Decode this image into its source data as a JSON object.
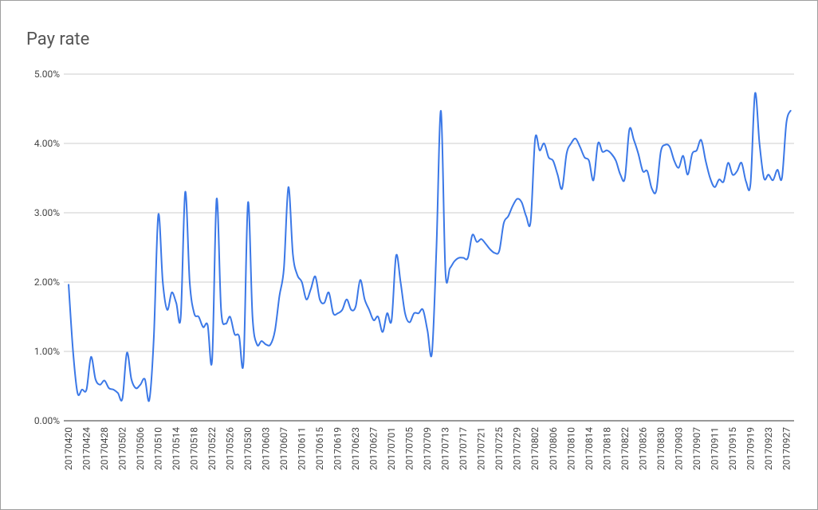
{
  "chart_data": {
    "type": "line",
    "title": "Pay rate",
    "categories": [
      "20170420",
      null,
      null,
      null,
      "20170424",
      null,
      null,
      null,
      "20170428",
      null,
      null,
      null,
      "20170502",
      null,
      null,
      null,
      "20170506",
      null,
      null,
      null,
      "20170510",
      null,
      null,
      null,
      "20170514",
      null,
      null,
      null,
      "20170518",
      null,
      null,
      null,
      "20170522",
      null,
      null,
      null,
      "20170526",
      null,
      null,
      null,
      "20170530",
      null,
      null,
      null,
      "20170603",
      null,
      null,
      null,
      "20170607",
      null,
      null,
      null,
      "20170611",
      null,
      null,
      null,
      "20170615",
      null,
      null,
      null,
      "20170619",
      null,
      null,
      null,
      "20170623",
      null,
      null,
      null,
      "20170627",
      null,
      null,
      null,
      "20170701",
      null,
      null,
      null,
      "20170705",
      null,
      null,
      null,
      "20170709",
      null,
      null,
      null,
      "20170713",
      null,
      null,
      null,
      "20170717",
      null,
      null,
      null,
      "20170721",
      null,
      null,
      null,
      "20170725",
      null,
      null,
      null,
      "20170729",
      null,
      null,
      null,
      "20170802",
      null,
      null,
      null,
      "20170806",
      null,
      null,
      null,
      "20170810",
      null,
      null,
      null,
      "20170814",
      null,
      null,
      null,
      "20170818",
      null,
      null,
      null,
      "20170822",
      null,
      null,
      null,
      "20170826",
      null,
      null,
      null,
      "20170830",
      null,
      null,
      null,
      "20170903",
      null,
      null,
      null,
      "20170907",
      null,
      null,
      null,
      "20170911",
      null,
      null,
      null,
      "20170915",
      null,
      null,
      null,
      "20170919",
      null,
      null,
      null,
      "20170923",
      null,
      null,
      null,
      "20170927",
      null
    ],
    "series": [
      {
        "name": "Pay rate",
        "color": "#3b78e7",
        "values": [
          1.97,
          1.0,
          0.4,
          0.45,
          0.45,
          0.92,
          0.6,
          0.52,
          0.58,
          0.47,
          0.45,
          0.4,
          0.32,
          0.98,
          0.6,
          0.47,
          0.52,
          0.6,
          0.3,
          1.2,
          2.97,
          2.0,
          1.6,
          1.85,
          1.7,
          1.5,
          3.3,
          2.0,
          1.55,
          1.5,
          1.35,
          1.38,
          0.88,
          3.2,
          1.6,
          1.4,
          1.5,
          1.25,
          1.22,
          0.85,
          3.15,
          1.5,
          1.1,
          1.15,
          1.1,
          1.1,
          1.3,
          1.8,
          2.2,
          3.37,
          2.4,
          2.1,
          2.0,
          1.75,
          1.9,
          2.08,
          1.75,
          1.7,
          1.85,
          1.55,
          1.55,
          1.6,
          1.75,
          1.6,
          1.65,
          2.03,
          1.75,
          1.6,
          1.45,
          1.5,
          1.28,
          1.55,
          1.45,
          2.38,
          2.0,
          1.55,
          1.42,
          1.55,
          1.55,
          1.6,
          1.3,
          0.98,
          2.5,
          4.47,
          2.15,
          2.2,
          2.3,
          2.35,
          2.35,
          2.35,
          2.68,
          2.58,
          2.62,
          2.55,
          2.47,
          2.42,
          2.45,
          2.85,
          2.95,
          3.1,
          3.2,
          3.15,
          2.95,
          2.88,
          4.07,
          3.9,
          4.0,
          3.8,
          3.75,
          3.55,
          3.35,
          3.85,
          4.0,
          4.07,
          3.95,
          3.8,
          3.75,
          3.47,
          4.0,
          3.88,
          3.9,
          3.85,
          3.75,
          3.55,
          3.5,
          4.2,
          4.05,
          3.85,
          3.6,
          3.6,
          3.35,
          3.32,
          3.88,
          3.98,
          3.95,
          3.75,
          3.65,
          3.82,
          3.55,
          3.85,
          3.9,
          4.05,
          3.75,
          3.5,
          3.37,
          3.48,
          3.45,
          3.72,
          3.55,
          3.6,
          3.72,
          3.45,
          3.42,
          4.72,
          4.0,
          3.5,
          3.55,
          3.47,
          3.62,
          3.5,
          4.3,
          4.48
        ]
      }
    ],
    "ylim": [
      0,
      5
    ],
    "yticks": [
      {
        "value": 0,
        "label": "0.00%"
      },
      {
        "value": 1,
        "label": "1.00%"
      },
      {
        "value": 2,
        "label": "2.00%"
      },
      {
        "value": 3,
        "label": "3.00%"
      },
      {
        "value": 4,
        "label": "4.00%"
      },
      {
        "value": 5,
        "label": "5.00%"
      }
    ],
    "grid": true
  }
}
